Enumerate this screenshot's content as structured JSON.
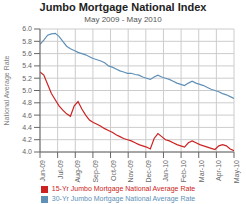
{
  "chart_data": {
    "type": "line",
    "title": "Jumbo Mortgage National Index",
    "subtitle": "May 2009 - May 2010",
    "ylabel": "National Average Rate",
    "x": [
      0,
      1,
      2,
      3,
      4,
      5,
      6,
      7,
      8,
      9,
      10,
      11,
      12,
      13,
      14,
      15,
      16,
      17,
      18,
      19,
      20,
      21,
      22,
      23,
      24,
      25,
      26,
      27,
      28,
      29,
      30,
      31,
      32,
      33,
      34,
      35,
      36,
      37,
      38,
      39,
      40,
      41,
      42,
      43,
      44,
      45,
      46,
      47,
      48,
      49,
      50,
      51
    ],
    "xlim": [
      0,
      51
    ],
    "xticks": [
      {
        "value": 0,
        "label": "Jun-09"
      },
      {
        "value": 4.636363636363637,
        "label": "Jul-09"
      },
      {
        "value": 9.272727272727273,
        "label": "Aug-09"
      },
      {
        "value": 13.909090909090908,
        "label": "Sep-09"
      },
      {
        "value": 18.545454545454547,
        "label": "Oct-09"
      },
      {
        "value": 23.181818181818183,
        "label": "Nov-09"
      },
      {
        "value": 27.818181818181817,
        "label": "Dec-09"
      },
      {
        "value": 32.45454545454545,
        "label": "Jan-10"
      },
      {
        "value": 37.09090909090909,
        "label": "Feb-10"
      },
      {
        "value": 41.72727272727273,
        "label": "Mar-10"
      },
      {
        "value": 46.36363636363637,
        "label": "Apr-10"
      },
      {
        "value": 51,
        "label": "May-10"
      }
    ],
    "ylim": [
      4.0,
      6.0
    ],
    "yticks": [
      {
        "value": 4.0,
        "label": "4.0"
      },
      4.2,
      4.4,
      4.6,
      4.8,
      {
        "value": 5.0,
        "label": "5.0"
      },
      5.2,
      5.4,
      5.6,
      5.8,
      {
        "value": 6.0,
        "label": "6.0"
      }
    ],
    "grid": true,
    "legend": "bottom",
    "series": [
      {
        "name": "30-Yr Jumbo Mortgage National Average Rate",
        "color": "#6090b8",
        "values": [
          5.75,
          5.82,
          5.9,
          5.92,
          5.93,
          5.88,
          5.8,
          5.72,
          5.68,
          5.65,
          5.62,
          5.6,
          5.58,
          5.55,
          5.52,
          5.5,
          5.48,
          5.45,
          5.4,
          5.38,
          5.35,
          5.32,
          5.3,
          5.28,
          5.28,
          5.26,
          5.25,
          5.22,
          5.2,
          5.18,
          5.22,
          5.25,
          5.22,
          5.2,
          5.18,
          5.15,
          5.12,
          5.1,
          5.08,
          5.12,
          5.15,
          5.12,
          5.1,
          5.08,
          5.05,
          5.02,
          5.0,
          4.98,
          4.95,
          4.93,
          4.9,
          4.87
        ]
      },
      {
        "name": "15-Yr Jumbo Mortgage National Average Rate",
        "color": "#cc2222",
        "values": [
          5.3,
          5.25,
          5.1,
          4.95,
          4.85,
          4.75,
          4.68,
          4.62,
          4.58,
          4.75,
          4.82,
          4.7,
          4.6,
          4.52,
          4.48,
          4.45,
          4.42,
          4.38,
          4.35,
          4.32,
          4.28,
          4.25,
          4.22,
          4.2,
          4.18,
          4.15,
          4.12,
          4.1,
          4.08,
          4.05,
          4.22,
          4.3,
          4.25,
          4.2,
          4.18,
          4.15,
          4.12,
          4.1,
          4.08,
          4.15,
          4.18,
          4.15,
          4.12,
          4.1,
          4.08,
          4.06,
          4.04,
          4.1,
          4.12,
          4.1,
          4.05,
          4.02
        ]
      }
    ]
  }
}
